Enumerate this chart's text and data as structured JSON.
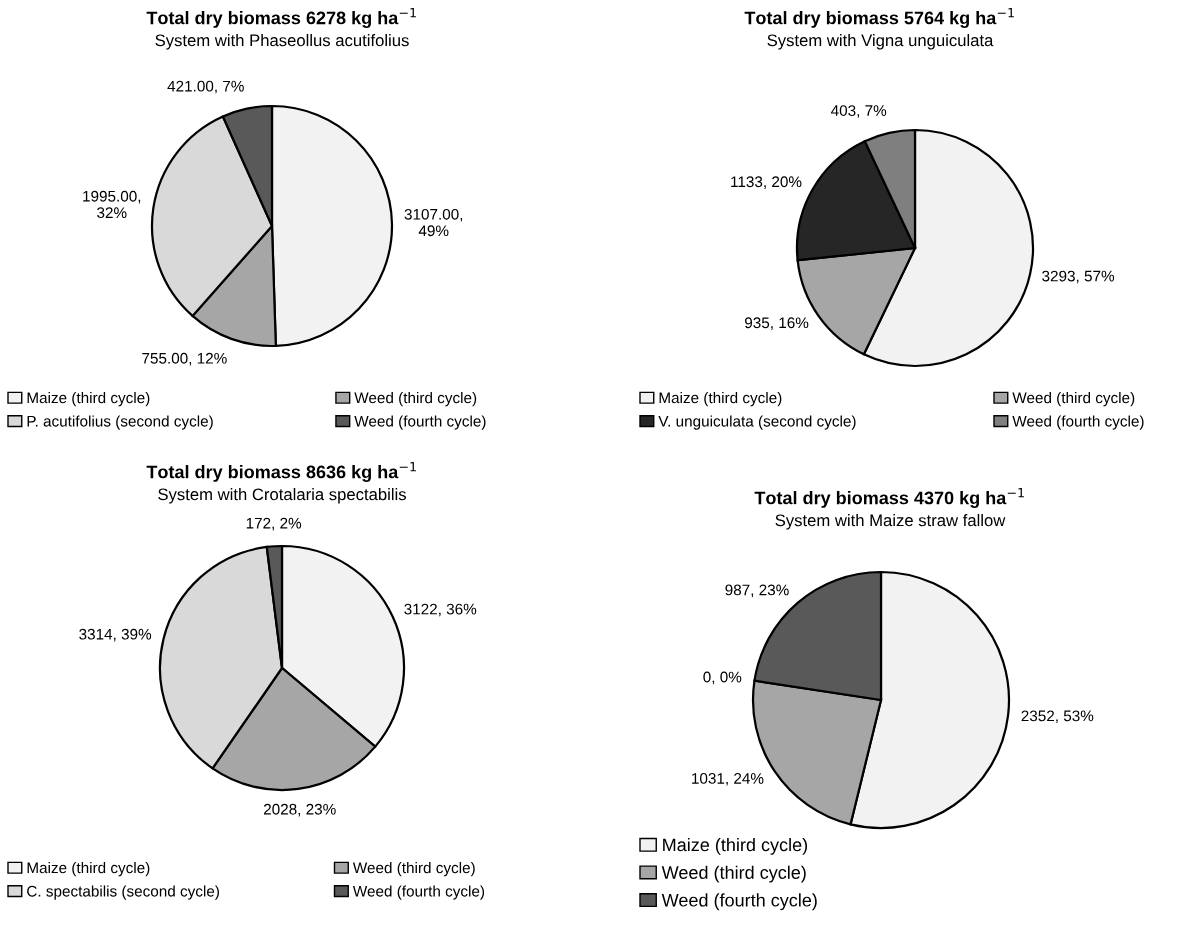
{
  "chart_data": [
    {
      "type": "pie",
      "title": "Total dry biomass 6278 kg ha$^{−1}$",
      "subtitle": "System with Phaseollus acutifolius",
      "categories": [
        "Maize (third cycle)",
        "Weed (third cycle)",
        "P. acutifolius (second cycle)",
        "Weed (fourth cycle)"
      ],
      "values": [
        3107,
        755,
        1995,
        421
      ],
      "value_labels": [
        "3107.00,\n49%",
        "755.00, 12%",
        "1995.00,\n32%",
        "421.00, 7%"
      ],
      "colors": [
        "#f2f2f2",
        "#a6a6a6",
        "#d9d9d9",
        "#595959"
      ],
      "legend": "bottom"
    },
    {
      "type": "pie",
      "title": "Total dry biomass 5764 kg ha$^{−1}$",
      "subtitle": "System with Vigna unguiculata",
      "categories": [
        "Maize (third cycle)",
        "Weed (third cycle)",
        "V. unguiculata (second cycle)",
        "Weed (fourth cycle)"
      ],
      "values": [
        3293,
        935,
        1133,
        403
      ],
      "value_labels": [
        "3293, 57%",
        "935, 16%",
        "1133, 20%",
        "403, 7%"
      ],
      "colors": [
        "#f2f2f2",
        "#a6a6a6",
        "#262626",
        "#7f7f7f"
      ],
      "legend": "bottom"
    },
    {
      "type": "pie",
      "title": "Total dry biomass 8636 kg ha$^{−1}$",
      "subtitle": "System with Crotalaria spectabilis",
      "categories": [
        "Maize (third cycle)",
        "Weed (third cycle)",
        "C. spectabilis (second cycle)",
        "Weed (fourth cycle)"
      ],
      "values": [
        3122,
        2028,
        3314,
        172
      ],
      "value_labels": [
        "3122, 36%",
        "2028, 23%",
        "3314, 39%",
        "172, 2%"
      ],
      "colors": [
        "#f2f2f2",
        "#a6a6a6",
        "#d9d9d9",
        "#595959"
      ],
      "legend": "bottom"
    },
    {
      "type": "pie",
      "title": "Total dry biomass 4370 kg ha$^{−1}$",
      "subtitle": "System with Maize straw fallow",
      "categories": [
        "Maize (third cycle)",
        "Weed (third cycle)",
        null,
        "Weed (fourth cycle)"
      ],
      "values": [
        2352,
        1031,
        0,
        987
      ],
      "value_labels": [
        "2352, 53%",
        "1031, 24%",
        "0, 0%",
        "987, 23%"
      ],
      "colors": [
        "#f2f2f2",
        "#a6a6a6",
        "#ffffff",
        "#595959"
      ],
      "legend": "bottom"
    }
  ]
}
